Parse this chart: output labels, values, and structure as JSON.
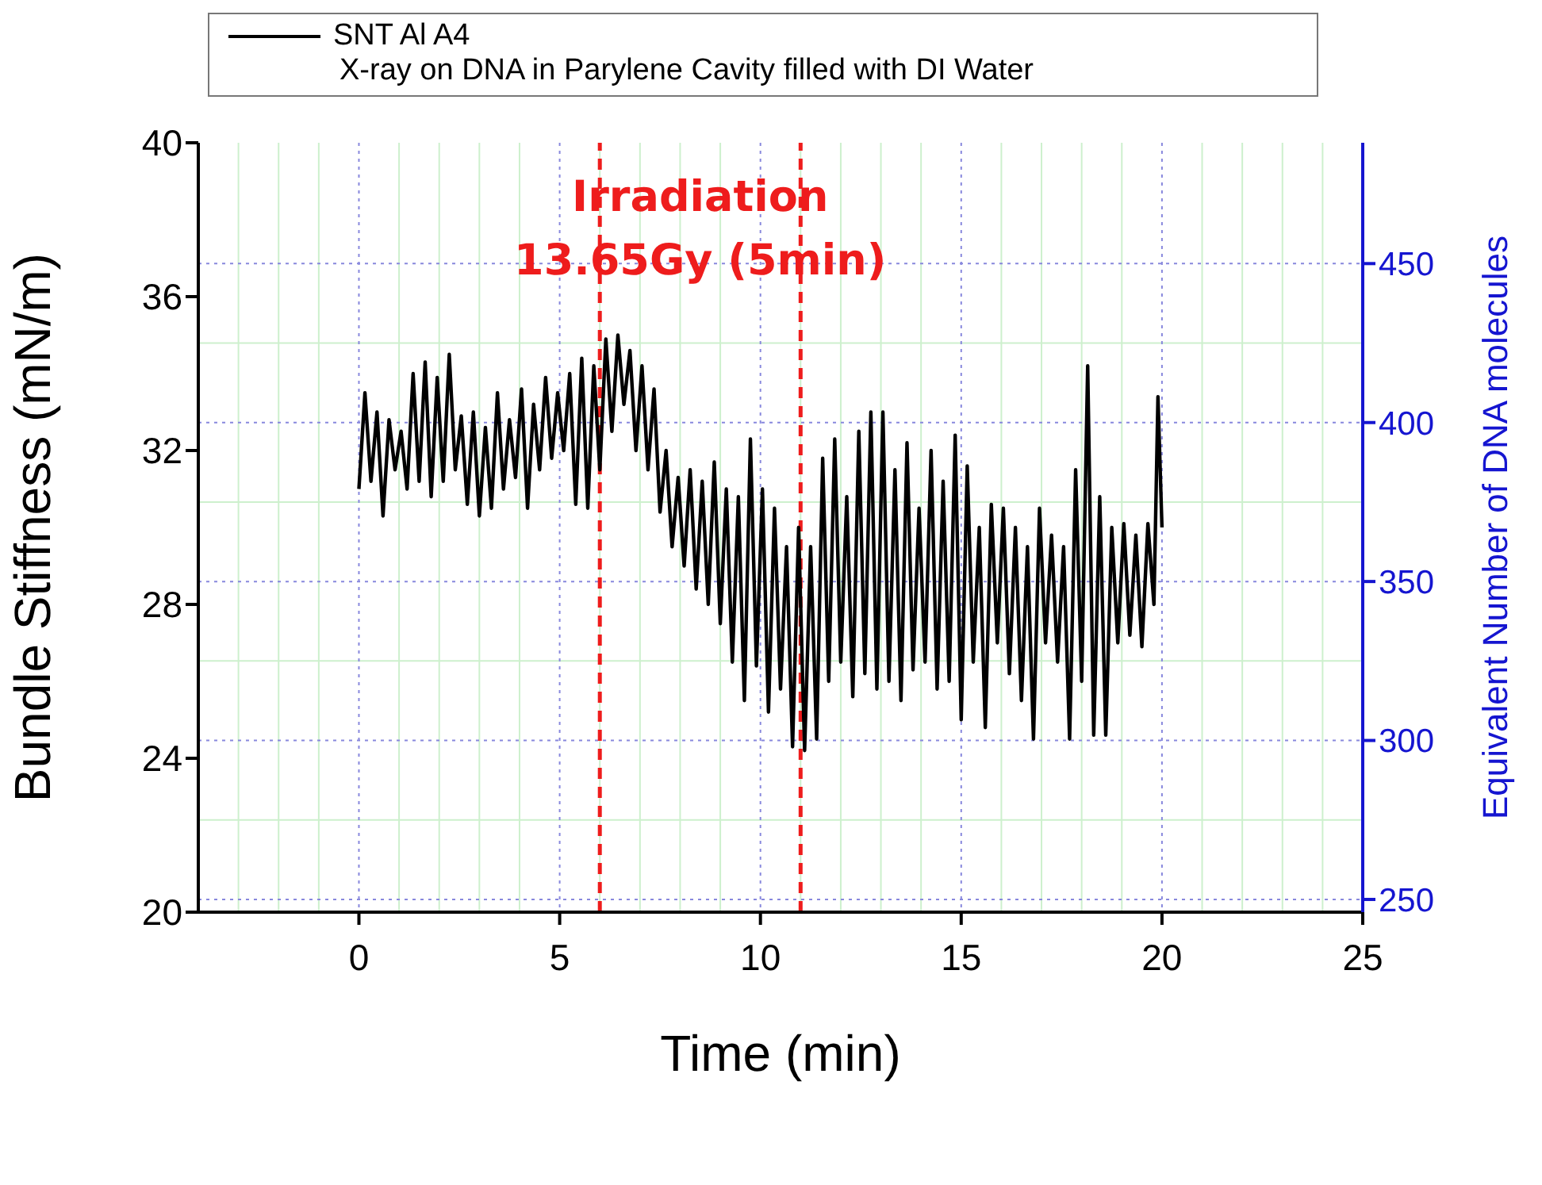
{
  "chart_data": {
    "type": "line",
    "xlabel": "Time (min)",
    "ylabel": "Bundle Stiffness (mN/m)",
    "y2label": "Equivalent Number of  DNA molecules",
    "legend_title": "X-ray on DNA in Parylene Cavity filled with DI Water",
    "annotations": [
      "Irradiation",
      "13.65Gy (5min)"
    ],
    "xlim": [
      -4,
      25
    ],
    "xticks": [
      0,
      5,
      10,
      15,
      20,
      25
    ],
    "ylim": [
      20,
      40
    ],
    "yticks": [
      20,
      24,
      28,
      32,
      36,
      40
    ],
    "y2lim": [
      246,
      488
    ],
    "y2ticks": [
      250,
      300,
      350,
      400,
      450
    ],
    "grid": true,
    "legend": "top",
    "marker": "none",
    "line_style": "solid",
    "ref_lines": [
      {
        "axis": "x",
        "value": 6,
        "color": "#ee1c1c",
        "line_style": "dashed"
      },
      {
        "axis": "x",
        "value": 11,
        "color": "#ee1c1c",
        "line_style": "dashed"
      }
    ],
    "series": [
      {
        "name": "SNT Al A4",
        "color": "#000000",
        "x": [
          0,
          0.15,
          0.3,
          0.45,
          0.6,
          0.75,
          0.9,
          1.05,
          1.2,
          1.35,
          1.5,
          1.65,
          1.8,
          1.95,
          2.1,
          2.25,
          2.4,
          2.55,
          2.7,
          2.85,
          3.0,
          3.15,
          3.3,
          3.45,
          3.6,
          3.75,
          3.9,
          4.05,
          4.2,
          4.35,
          4.5,
          4.65,
          4.8,
          4.95,
          5.1,
          5.25,
          5.4,
          5.55,
          5.7,
          5.85,
          6.0,
          6.15,
          6.3,
          6.45,
          6.6,
          6.75,
          6.9,
          7.05,
          7.2,
          7.35,
          7.5,
          7.65,
          7.8,
          7.95,
          8.1,
          8.25,
          8.4,
          8.55,
          8.7,
          8.85,
          9.0,
          9.15,
          9.3,
          9.45,
          9.6,
          9.75,
          9.9,
          10.05,
          10.2,
          10.35,
          10.5,
          10.65,
          10.8,
          10.95,
          11.1,
          11.25,
          11.4,
          11.55,
          11.7,
          11.85,
          12.0,
          12.15,
          12.3,
          12.45,
          12.6,
          12.75,
          12.9,
          13.05,
          13.2,
          13.35,
          13.5,
          13.65,
          13.8,
          13.95,
          14.1,
          14.25,
          14.4,
          14.55,
          14.7,
          14.85,
          15.0,
          15.15,
          15.3,
          15.45,
          15.6,
          15.75,
          15.9,
          16.05,
          16.2,
          16.35,
          16.5,
          16.65,
          16.8,
          16.95,
          17.1,
          17.25,
          17.4,
          17.55,
          17.7,
          17.85,
          18.0,
          18.15,
          18.3,
          18.45,
          18.6,
          18.75,
          18.9,
          19.05,
          19.2,
          19.35,
          19.5,
          19.65,
          19.8,
          19.9,
          20.0
        ],
        "values": [
          31.0,
          33.5,
          31.2,
          33.0,
          30.3,
          32.8,
          31.5,
          32.5,
          31.0,
          34.0,
          31.2,
          34.3,
          30.8,
          33.9,
          31.2,
          34.5,
          31.5,
          32.9,
          30.6,
          33.0,
          30.3,
          32.6,
          30.5,
          33.5,
          31.0,
          32.8,
          31.3,
          33.6,
          30.5,
          33.2,
          31.5,
          33.9,
          31.8,
          33.5,
          32.0,
          34.0,
          30.6,
          34.4,
          30.5,
          34.2,
          31.5,
          34.9,
          32.5,
          35.0,
          33.2,
          34.6,
          32.0,
          34.2,
          31.5,
          33.6,
          30.4,
          32.0,
          29.5,
          31.3,
          29.0,
          31.5,
          28.4,
          31.2,
          28.0,
          31.7,
          27.5,
          31.0,
          26.5,
          30.8,
          25.5,
          32.3,
          26.4,
          31.0,
          25.2,
          30.5,
          25.8,
          29.5,
          24.3,
          30.0,
          24.2,
          29.5,
          24.5,
          31.8,
          26.0,
          32.3,
          26.5,
          30.8,
          25.6,
          32.5,
          26.2,
          33.0,
          25.8,
          33.0,
          26.0,
          31.5,
          25.5,
          32.2,
          26.3,
          30.5,
          26.5,
          32.0,
          25.8,
          31.2,
          26.0,
          32.4,
          25.0,
          31.6,
          26.5,
          30.0,
          24.8,
          30.6,
          27.0,
          30.5,
          26.2,
          30.0,
          25.5,
          29.5,
          24.5,
          30.5,
          27.0,
          29.8,
          26.5,
          29.5,
          24.5,
          31.5,
          26.0,
          34.2,
          24.6,
          30.8,
          24.6,
          30.0,
          27.0,
          30.1,
          27.2,
          29.8,
          26.9,
          30.1,
          28.0,
          33.4,
          30.0
        ]
      }
    ]
  }
}
